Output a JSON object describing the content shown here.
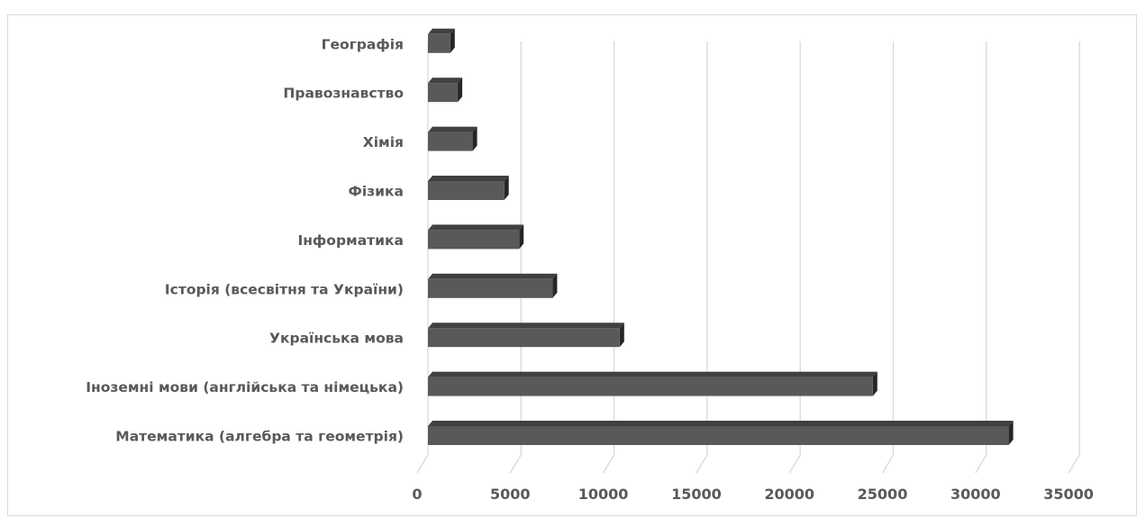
{
  "chart_data": {
    "type": "bar",
    "orientation": "horizontal",
    "style": "3d",
    "categories": [
      "Математика (алгебра та геометрія)",
      "Іноземні мови (англійська та німецька)",
      "Українська мова",
      "Історія (всесвітня та України)",
      "Інформатика",
      "Фізика",
      "Хімія",
      "Правознавство",
      "Географія"
    ],
    "values": [
      31200,
      23900,
      10300,
      6700,
      4900,
      4100,
      2400,
      1600,
      1200
    ],
    "xlim": [
      0,
      35000
    ],
    "x_ticks": [
      "0",
      "5000",
      "10000",
      "15000",
      "20000",
      "25000",
      "30000",
      "35000"
    ],
    "grid": true,
    "bar_color": "#595959",
    "bar_top_color": "#404040",
    "bar_side_color": "#262626",
    "gridline_color": "#d9d9d9",
    "label_color": "#595959"
  }
}
